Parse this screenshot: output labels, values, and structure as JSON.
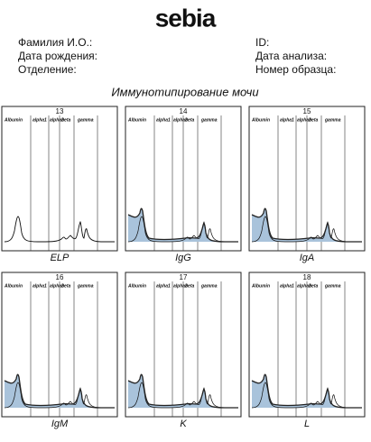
{
  "header": {
    "logo": "sebia",
    "fields_left": [
      "Фамилия И.О.:",
      "Дата рождения:",
      "Отделение:"
    ],
    "fields_right": [
      "ID:",
      "Дата анализа:",
      "Номер образца:"
    ]
  },
  "title": "Иммунотипирование мочи",
  "zones": [
    "Albumin",
    "alpha1",
    "alpha2",
    "beta",
    "gamma"
  ],
  "panels": [
    {
      "number": "13",
      "label": "ELP"
    },
    {
      "number": "14",
      "label": "IgG"
    },
    {
      "number": "15",
      "label": "IgA"
    },
    {
      "number": "16",
      "label": "IgM"
    },
    {
      "number": "17",
      "label": "K"
    },
    {
      "number": "18",
      "label": "L"
    }
  ]
}
